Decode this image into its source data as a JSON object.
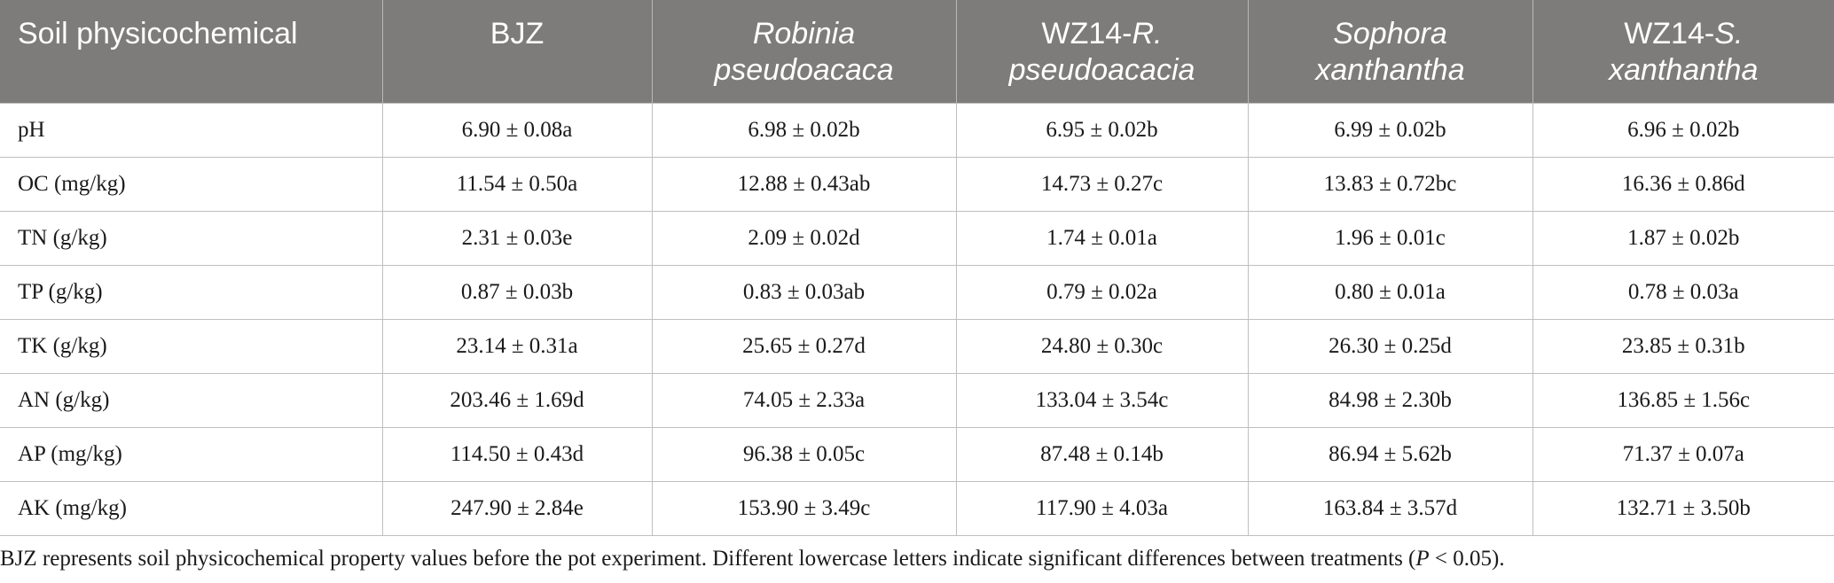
{
  "table": {
    "headers": [
      {
        "pre": "Soil physicochemical",
        "it": "",
        "post": ""
      },
      {
        "pre": "BJZ",
        "it": "",
        "post": ""
      },
      {
        "pre": "",
        "it": "Robinia pseudoacaca",
        "post": ""
      },
      {
        "pre": "WZ14-",
        "it": "R. pseudoacacia",
        "post": ""
      },
      {
        "pre": "",
        "it": "Sophora xanthantha",
        "post": ""
      },
      {
        "pre": "WZ14-",
        "it": "S. xanthantha",
        "post": ""
      }
    ],
    "rows": [
      [
        "pH",
        "6.90 ± 0.08a",
        "6.98 ± 0.02b",
        "6.95 ± 0.02b",
        "6.99 ± 0.02b",
        "6.96 ± 0.02b"
      ],
      [
        "OC (mg/kg)",
        "11.54 ± 0.50a",
        "12.88 ± 0.43ab",
        "14.73 ± 0.27c",
        "13.83 ± 0.72bc",
        "16.36 ± 0.86d"
      ],
      [
        "TN (g/kg)",
        "2.31 ± 0.03e",
        "2.09 ± 0.02d",
        "1.74 ± 0.01a",
        "1.96 ± 0.01c",
        "1.87 ± 0.02b"
      ],
      [
        "TP (g/kg)",
        "0.87 ± 0.03b",
        "0.83 ± 0.03ab",
        "0.79 ± 0.02a",
        "0.80 ± 0.01a",
        "0.78 ± 0.03a"
      ],
      [
        "TK (g/kg)",
        "23.14 ± 0.31a",
        "25.65 ± 0.27d",
        "24.80 ± 0.30c",
        "26.30 ± 0.25d",
        "23.85 ± 0.31b"
      ],
      [
        "AN (g/kg)",
        "203.46 ± 1.69d",
        "74.05 ± 2.33a",
        "133.04 ± 3.54c",
        "84.98 ± 2.30b",
        "136.85 ± 1.56c"
      ],
      [
        "AP (mg/kg)",
        "114.50 ± 0.43d",
        "96.38 ± 0.05c",
        "87.48 ± 0.14b",
        "86.94 ± 5.62b",
        "71.37 ± 0.07a"
      ],
      [
        "AK (mg/kg)",
        "247.90 ± 2.84e",
        "153.90 ± 3.49c",
        "117.90 ± 4.03a",
        "163.84 ± 3.57d",
        "132.71 ± 3.50b"
      ]
    ]
  },
  "footnote": {
    "text_before": "BJZ represents soil physicochemical property values before the pot experiment. Different lowercase letters indicate significant differences between treatments (",
    "p_symbol": "P",
    "text_after": " < 0.05)."
  },
  "colors": {
    "header_bg": "#7d7c7b",
    "header_text": "#ffffff",
    "grid_line": "#bfbfbf",
    "body_text": "#1a1a1a"
  }
}
